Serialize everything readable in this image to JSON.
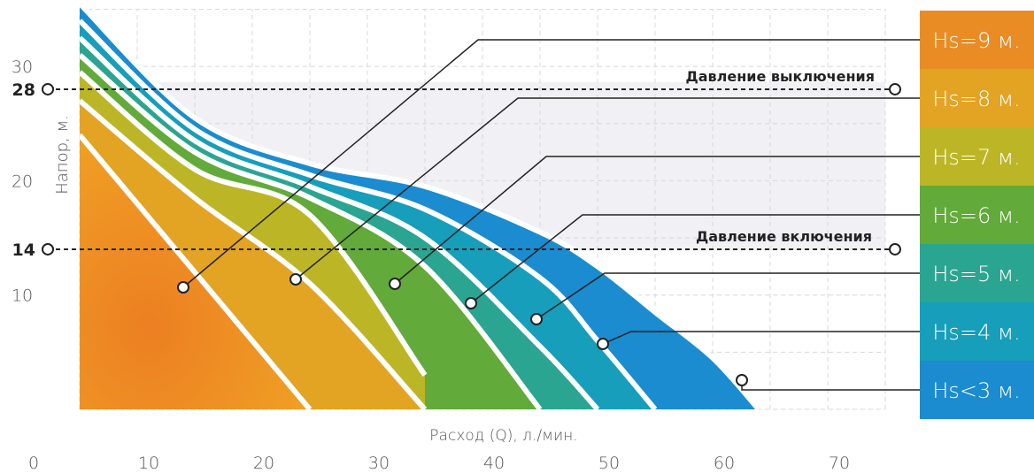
{
  "chart_data": {
    "type": "area",
    "xlabel": "Расход (Q), л./мин.",
    "ylabel": "Напор, м.",
    "xlim": [
      0,
      70
    ],
    "ylim": [
      0,
      35
    ],
    "x_ticks": [
      "0",
      "10",
      "20",
      "30",
      "40",
      "50",
      "60",
      "70"
    ],
    "y_ticks": [
      "10",
      "20",
      "30"
    ],
    "grid": true,
    "curves_x": [
      0,
      10,
      20,
      30,
      40,
      45,
      50,
      55,
      59
    ],
    "series": [
      {
        "name": "Hs<3 м.",
        "color": "#1a8ccf",
        "values": [
          35.5,
          25.5,
          21.5,
          19.5,
          15.5,
          12.5,
          8.5,
          4.5,
          0
        ]
      },
      {
        "name": "Hs=4 м.",
        "color": "#169ebb",
        "values": [
          34.0,
          24.5,
          20.5,
          17.5,
          11.5,
          6.0,
          0,
          null,
          null
        ]
      },
      {
        "name": "Hs=5 м.",
        "color": "#2aa591",
        "values": [
          32.5,
          23.5,
          19.5,
          15.0,
          5.5,
          0,
          null,
          null,
          null
        ]
      },
      {
        "name": "Hs=6 м.",
        "color": "#62aa3a",
        "values": [
          31.0,
          22.5,
          18.5,
          12.5,
          0,
          null,
          null,
          null,
          null
        ]
      },
      {
        "name": "Hs=7 м.",
        "color": "#bcb626",
        "values": [
          29.5,
          21.0,
          17.0,
          3.0,
          null,
          null,
          null,
          null,
          null
        ]
      },
      {
        "name": "Hs=8 м.",
        "color": "#e3a323",
        "values": [
          27.0,
          18.5,
          11.0,
          0,
          null,
          null,
          null,
          null,
          null
        ]
      },
      {
        "name": "Hs=9 м.",
        "color": "#e98c24",
        "values": [
          24.0,
          12.0,
          0,
          null,
          null,
          null,
          null,
          null,
          null
        ]
      }
    ],
    "annotations": {
      "off_pressure": {
        "label": "Давление выключения",
        "value": "28",
        "y": 28
      },
      "on_pressure": {
        "label": "Давление включения",
        "value": "14",
        "y": 14
      }
    },
    "legend_position": "right"
  }
}
